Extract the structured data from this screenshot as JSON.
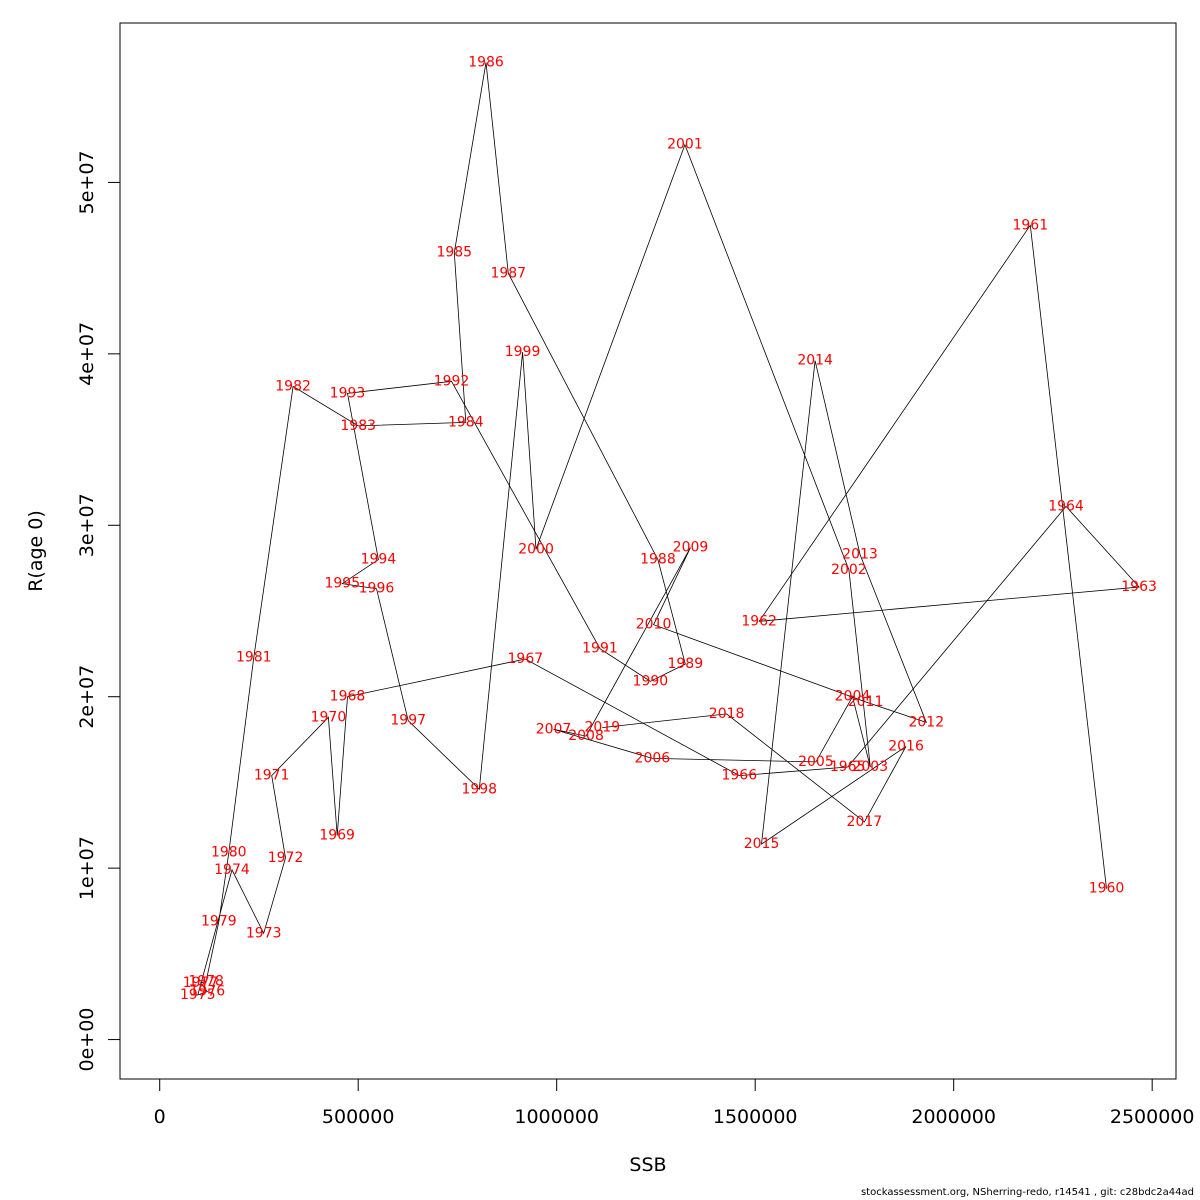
{
  "chart_data": {
    "type": "line",
    "title": "",
    "xlabel": "SSB",
    "ylabel": "R(age 0)",
    "xlim": [
      -100000,
      2560000
    ],
    "ylim": [
      -2300000,
      59300000
    ],
    "xticks": [
      0,
      500000,
      1000000,
      1500000,
      2000000,
      2500000
    ],
    "xtick_labels": [
      "0",
      "500000",
      "1000000",
      "1500000",
      "2000000",
      "2500000"
    ],
    "yticks": [
      0,
      10000000,
      20000000,
      30000000,
      40000000,
      50000000
    ],
    "ytick_labels": [
      "0e+00",
      "1e+07",
      "2e+07",
      "3e+07",
      "4e+07",
      "5e+07"
    ],
    "grid": false,
    "line_color": "#000000",
    "label_color": "#ff0000",
    "points": [
      {
        "year": "1960",
        "x": 2385000,
        "y": 8800000
      },
      {
        "year": "1961",
        "x": 2193000,
        "y": 47500000
      },
      {
        "year": "1962",
        "x": 1510000,
        "y": 24400000
      },
      {
        "year": "1963",
        "x": 2467000,
        "y": 26400000
      },
      {
        "year": "1964",
        "x": 2283000,
        "y": 31100000
      },
      {
        "year": "1965",
        "x": 1733000,
        "y": 15900000
      },
      {
        "year": "1966",
        "x": 1460000,
        "y": 15400000
      },
      {
        "year": "1967",
        "x": 921000,
        "y": 22200000
      },
      {
        "year": "1968",
        "x": 473000,
        "y": 20000000
      },
      {
        "year": "1969",
        "x": 447000,
        "y": 11900000
      },
      {
        "year": "1970",
        "x": 425000,
        "y": 18800000
      },
      {
        "year": "1971",
        "x": 282000,
        "y": 15400000
      },
      {
        "year": "1972",
        "x": 317000,
        "y": 10600000
      },
      {
        "year": "1973",
        "x": 262000,
        "y": 6200000
      },
      {
        "year": "1974",
        "x": 182000,
        "y": 9900000
      },
      {
        "year": "1975",
        "x": 96000,
        "y": 2600000
      },
      {
        "year": "1976",
        "x": 120000,
        "y": 2800000
      },
      {
        "year": "1977",
        "x": 103000,
        "y": 3300000
      },
      {
        "year": "1978",
        "x": 117000,
        "y": 3400000
      },
      {
        "year": "1979",
        "x": 149000,
        "y": 6900000
      },
      {
        "year": "1980",
        "x": 174000,
        "y": 10900000
      },
      {
        "year": "1981",
        "x": 237000,
        "y": 22300000
      },
      {
        "year": "1982",
        "x": 336000,
        "y": 38100000
      },
      {
        "year": "1983",
        "x": 500000,
        "y": 35800000
      },
      {
        "year": "1984",
        "x": 771000,
        "y": 36000000
      },
      {
        "year": "1985",
        "x": 742000,
        "y": 45900000
      },
      {
        "year": "1986",
        "x": 822000,
        "y": 57000000
      },
      {
        "year": "1987",
        "x": 878000,
        "y": 44700000
      },
      {
        "year": "1988",
        "x": 1255000,
        "y": 28000000
      },
      {
        "year": "1989",
        "x": 1324000,
        "y": 21900000
      },
      {
        "year": "1990",
        "x": 1236000,
        "y": 20900000
      },
      {
        "year": "1991",
        "x": 1109000,
        "y": 22800000
      },
      {
        "year": "1992",
        "x": 735000,
        "y": 38400000
      },
      {
        "year": "1993",
        "x": 473000,
        "y": 37700000
      },
      {
        "year": "1994",
        "x": 551000,
        "y": 28000000
      },
      {
        "year": "1995",
        "x": 460000,
        "y": 26600000
      },
      {
        "year": "1996",
        "x": 546000,
        "y": 26300000
      },
      {
        "year": "1997",
        "x": 626000,
        "y": 18600000
      },
      {
        "year": "1998",
        "x": 805000,
        "y": 14600000
      },
      {
        "year": "1999",
        "x": 914000,
        "y": 40100000
      },
      {
        "year": "2000",
        "x": 948000,
        "y": 28600000
      },
      {
        "year": "2001",
        "x": 1323000,
        "y": 52200000
      },
      {
        "year": "2002",
        "x": 1736000,
        "y": 27400000
      },
      {
        "year": "2003",
        "x": 1790000,
        "y": 15900000
      },
      {
        "year": "2004",
        "x": 1745000,
        "y": 20000000
      },
      {
        "year": "2005",
        "x": 1653000,
        "y": 16200000
      },
      {
        "year": "2006",
        "x": 1241000,
        "y": 16400000
      },
      {
        "year": "2007",
        "x": 992000,
        "y": 18100000
      },
      {
        "year": "2008",
        "x": 1074000,
        "y": 17700000
      },
      {
        "year": "2009",
        "x": 1337000,
        "y": 28700000
      },
      {
        "year": "2010",
        "x": 1244000,
        "y": 24200000
      },
      {
        "year": "2011",
        "x": 1778000,
        "y": 19700000
      },
      {
        "year": "2012",
        "x": 1931000,
        "y": 18500000
      },
      {
        "year": "2013",
        "x": 1764000,
        "y": 28300000
      },
      {
        "year": "2014",
        "x": 1651000,
        "y": 39600000
      },
      {
        "year": "2015",
        "x": 1516000,
        "y": 11400000
      },
      {
        "year": "2016",
        "x": 1880000,
        "y": 17100000
      },
      {
        "year": "2017",
        "x": 1775000,
        "y": 12700000
      },
      {
        "year": "2018",
        "x": 1428000,
        "y": 19000000
      },
      {
        "year": "2019",
        "x": 1115000,
        "y": 18200000
      }
    ]
  },
  "footer": "stockassessment.org, NSherring-redo, r14541 , git: c28bdc2a44ad"
}
